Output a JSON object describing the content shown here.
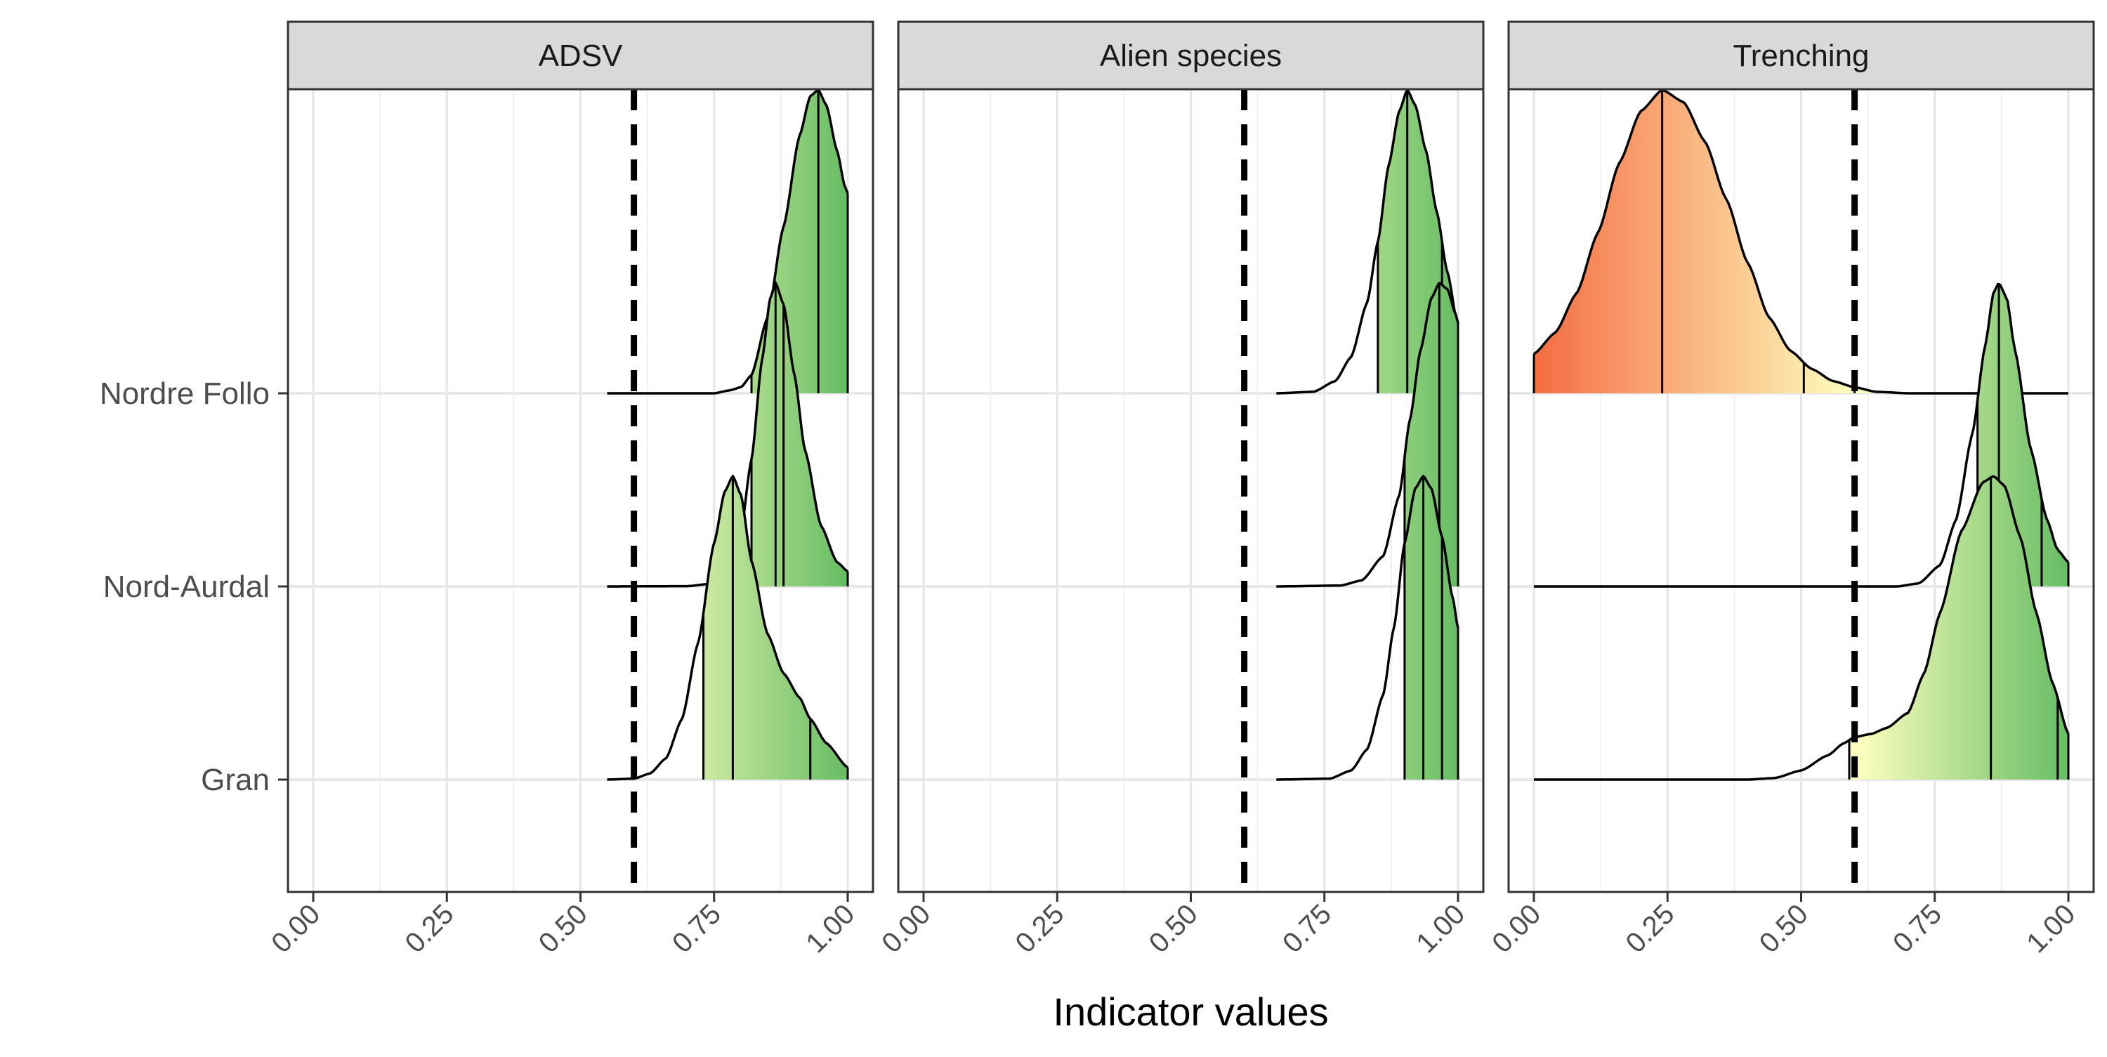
{
  "chart_data": {
    "type": "ridgeline",
    "xlabel": "Indicator values",
    "ylabel": "",
    "title": "",
    "categories": [
      "Nordre Follo",
      "Nord-Aurdal",
      "Gran"
    ],
    "x_ticks": [
      0,
      0.25,
      0.5,
      0.75,
      1
    ],
    "x_tick_labels": [
      "0.00",
      "0.25",
      "0.50",
      "0.75",
      "1.00"
    ],
    "xlim": [
      0,
      1
    ],
    "threshold": 0.6,
    "threshold_style": "dashed black vertical line",
    "grid": true,
    "color_scale": {
      "low": "#f46d43",
      "mid": "#ffffbf",
      "high": "#66bd63"
    },
    "panels": [
      {
        "name": "ADSV",
        "ridges": [
          {
            "category": "Gran",
            "mode": 0.785,
            "range": [
              0.55,
              1.0
            ],
            "quantiles": [
              0.73,
              0.785,
              0.93
            ],
            "profile": [
              [
                0.55,
                0
              ],
              [
                0.6,
                0.003
              ],
              [
                0.63,
                0.02
              ],
              [
                0.66,
                0.07
              ],
              [
                0.69,
                0.2
              ],
              [
                0.72,
                0.45
              ],
              [
                0.75,
                0.78
              ],
              [
                0.77,
                0.95
              ],
              [
                0.785,
                1.0
              ],
              [
                0.8,
                0.94
              ],
              [
                0.82,
                0.72
              ],
              [
                0.85,
                0.48
              ],
              [
                0.88,
                0.35
              ],
              [
                0.91,
                0.27
              ],
              [
                0.93,
                0.2
              ],
              [
                0.96,
                0.12
              ],
              [
                1.0,
                0.04
              ]
            ]
          },
          {
            "category": "Nord-Aurdal",
            "mode": 0.865,
            "range": [
              0.55,
              1.0
            ],
            "quantiles": [
              0.82,
              0.865,
              0.88
            ],
            "profile": [
              [
                0.55,
                0
              ],
              [
                0.7,
                0.001
              ],
              [
                0.75,
                0.01
              ],
              [
                0.78,
                0.06
              ],
              [
                0.8,
                0.18
              ],
              [
                0.82,
                0.42
              ],
              [
                0.84,
                0.75
              ],
              [
                0.855,
                0.95
              ],
              [
                0.865,
                1.0
              ],
              [
                0.88,
                0.93
              ],
              [
                0.9,
                0.7
              ],
              [
                0.92,
                0.45
              ],
              [
                0.95,
                0.2
              ],
              [
                0.98,
                0.08
              ],
              [
                1.0,
                0.05
              ]
            ]
          },
          {
            "category": "Nordre Follo",
            "mode": 0.945,
            "range": [
              0.55,
              1.0
            ],
            "quantiles": [
              0.82,
              0.945
            ],
            "profile": [
              [
                0.55,
                0
              ],
              [
                0.75,
                0.0
              ],
              [
                0.78,
                0.01
              ],
              [
                0.8,
                0.02
              ],
              [
                0.82,
                0.06
              ],
              [
                0.85,
                0.25
              ],
              [
                0.88,
                0.55
              ],
              [
                0.91,
                0.85
              ],
              [
                0.93,
                0.98
              ],
              [
                0.945,
                1.0
              ],
              [
                0.96,
                0.95
              ],
              [
                0.98,
                0.8
              ],
              [
                0.995,
                0.68
              ],
              [
                1.0,
                0.66
              ]
            ]
          }
        ]
      },
      {
        "name": "Alien species",
        "ridges": [
          {
            "category": "Gran",
            "mode": 0.935,
            "range": [
              0.66,
              1.0
            ],
            "quantiles": [
              0.9,
              0.935,
              0.97
            ],
            "profile": [
              [
                0.66,
                0
              ],
              [
                0.76,
                0.003
              ],
              [
                0.8,
                0.03
              ],
              [
                0.83,
                0.1
              ],
              [
                0.86,
                0.28
              ],
              [
                0.88,
                0.5
              ],
              [
                0.9,
                0.78
              ],
              [
                0.92,
                0.96
              ],
              [
                0.935,
                1.0
              ],
              [
                0.95,
                0.96
              ],
              [
                0.97,
                0.8
              ],
              [
                0.99,
                0.6
              ],
              [
                1.0,
                0.5
              ]
            ]
          },
          {
            "category": "Nord-Aurdal",
            "mode": 0.965,
            "range": [
              0.66,
              1.0
            ],
            "quantiles": [
              0.9,
              0.965,
              1.0
            ],
            "profile": [
              [
                0.66,
                0
              ],
              [
                0.78,
                0.003
              ],
              [
                0.82,
                0.02
              ],
              [
                0.86,
                0.1
              ],
              [
                0.89,
                0.3
              ],
              [
                0.91,
                0.55
              ],
              [
                0.93,
                0.78
              ],
              [
                0.95,
                0.95
              ],
              [
                0.965,
                1.0
              ],
              [
                0.98,
                0.98
              ],
              [
                0.995,
                0.9
              ],
              [
                1.0,
                0.87
              ]
            ]
          },
          {
            "category": "Nordre Follo",
            "mode": 0.905,
            "range": [
              0.66,
              1.0
            ],
            "quantiles": [
              0.85,
              0.905,
              0.97
            ],
            "profile": [
              [
                0.66,
                0
              ],
              [
                0.73,
                0.005
              ],
              [
                0.77,
                0.04
              ],
              [
                0.8,
                0.12
              ],
              [
                0.83,
                0.3
              ],
              [
                0.85,
                0.5
              ],
              [
                0.87,
                0.75
              ],
              [
                0.89,
                0.93
              ],
              [
                0.905,
                1.0
              ],
              [
                0.92,
                0.95
              ],
              [
                0.94,
                0.8
              ],
              [
                0.96,
                0.6
              ],
              [
                0.98,
                0.4
              ],
              [
                1.0,
                0.22
              ]
            ]
          }
        ]
      },
      {
        "name": "Trenching",
        "ridges": [
          {
            "category": "Gran",
            "mode": 0.855,
            "range": [
              0.0,
              1.0
            ],
            "quantiles": [
              0.59,
              0.855,
              0.98
            ],
            "profile": [
              [
                0,
                0
              ],
              [
                0.4,
                0.0
              ],
              [
                0.45,
                0.005
              ],
              [
                0.5,
                0.03
              ],
              [
                0.55,
                0.08
              ],
              [
                0.58,
                0.12
              ],
              [
                0.6,
                0.14
              ],
              [
                0.63,
                0.15
              ],
              [
                0.66,
                0.17
              ],
              [
                0.7,
                0.22
              ],
              [
                0.73,
                0.35
              ],
              [
                0.76,
                0.55
              ],
              [
                0.8,
                0.82
              ],
              [
                0.84,
                0.98
              ],
              [
                0.86,
                1.0
              ],
              [
                0.88,
                0.97
              ],
              [
                0.91,
                0.8
              ],
              [
                0.94,
                0.55
              ],
              [
                0.97,
                0.32
              ],
              [
                1.0,
                0.15
              ]
            ]
          },
          {
            "category": "Nord-Aurdal",
            "mode": 0.87,
            "range": [
              0.0,
              1.0
            ],
            "quantiles": [
              0.83,
              0.87,
              0.95
            ],
            "profile": [
              [
                0,
                0
              ],
              [
                0.68,
                0.0
              ],
              [
                0.72,
                0.01
              ],
              [
                0.76,
                0.07
              ],
              [
                0.79,
                0.22
              ],
              [
                0.82,
                0.5
              ],
              [
                0.845,
                0.8
              ],
              [
                0.86,
                0.97
              ],
              [
                0.87,
                1.0
              ],
              [
                0.885,
                0.95
              ],
              [
                0.9,
                0.78
              ],
              [
                0.93,
                0.45
              ],
              [
                0.96,
                0.22
              ],
              [
                0.98,
                0.12
              ],
              [
                1.0,
                0.08
              ]
            ]
          },
          {
            "category": "Nordre Follo",
            "mode": 0.24,
            "range": [
              0.0,
              1.0
            ],
            "quantiles": [
              0.0,
              0.24,
              0.505,
              0.6
            ],
            "profile": [
              [
                0,
                0.13
              ],
              [
                0.04,
                0.2
              ],
              [
                0.08,
                0.33
              ],
              [
                0.12,
                0.53
              ],
              [
                0.16,
                0.76
              ],
              [
                0.2,
                0.93
              ],
              [
                0.24,
                1.0
              ],
              [
                0.28,
                0.96
              ],
              [
                0.32,
                0.83
              ],
              [
                0.36,
                0.64
              ],
              [
                0.4,
                0.43
              ],
              [
                0.44,
                0.25
              ],
              [
                0.48,
                0.14
              ],
              [
                0.52,
                0.08
              ],
              [
                0.56,
                0.04
              ],
              [
                0.6,
                0.02
              ],
              [
                0.64,
                0.005
              ],
              [
                0.7,
                0
              ],
              [
                1.0,
                0
              ]
            ]
          }
        ]
      }
    ]
  }
}
